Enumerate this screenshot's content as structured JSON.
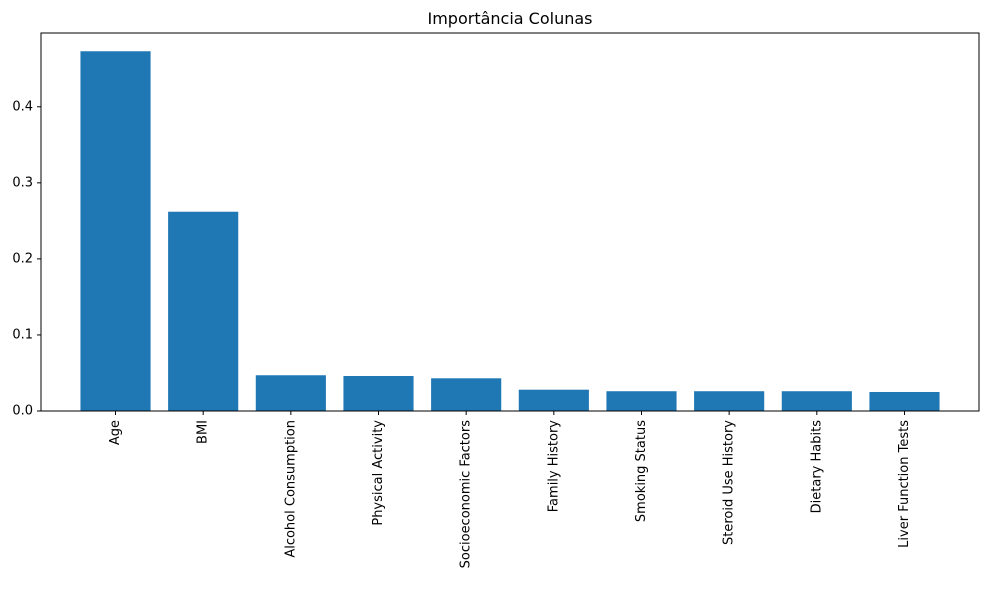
{
  "chart_data": {
    "type": "bar",
    "title": "Importância Colunas",
    "xlabel": "",
    "ylabel": "",
    "categories": [
      "Age",
      "BMI",
      "Alcohol Consumption",
      "Physical Activity",
      "Socioeconomic Factors",
      "Family History",
      "Smoking Status",
      "Steroid Use History",
      "Dietary Habits",
      "Liver Function Tests"
    ],
    "values": [
      0.473,
      0.262,
      0.047,
      0.046,
      0.043,
      0.028,
      0.026,
      0.026,
      0.026,
      0.025
    ],
    "ylim": [
      0,
      0.497
    ],
    "yticks": [
      "0.0",
      "0.1",
      "0.2",
      "0.3",
      "0.4"
    ],
    "bar_color": "#1f77b4",
    "grid": false,
    "legend": "none"
  }
}
